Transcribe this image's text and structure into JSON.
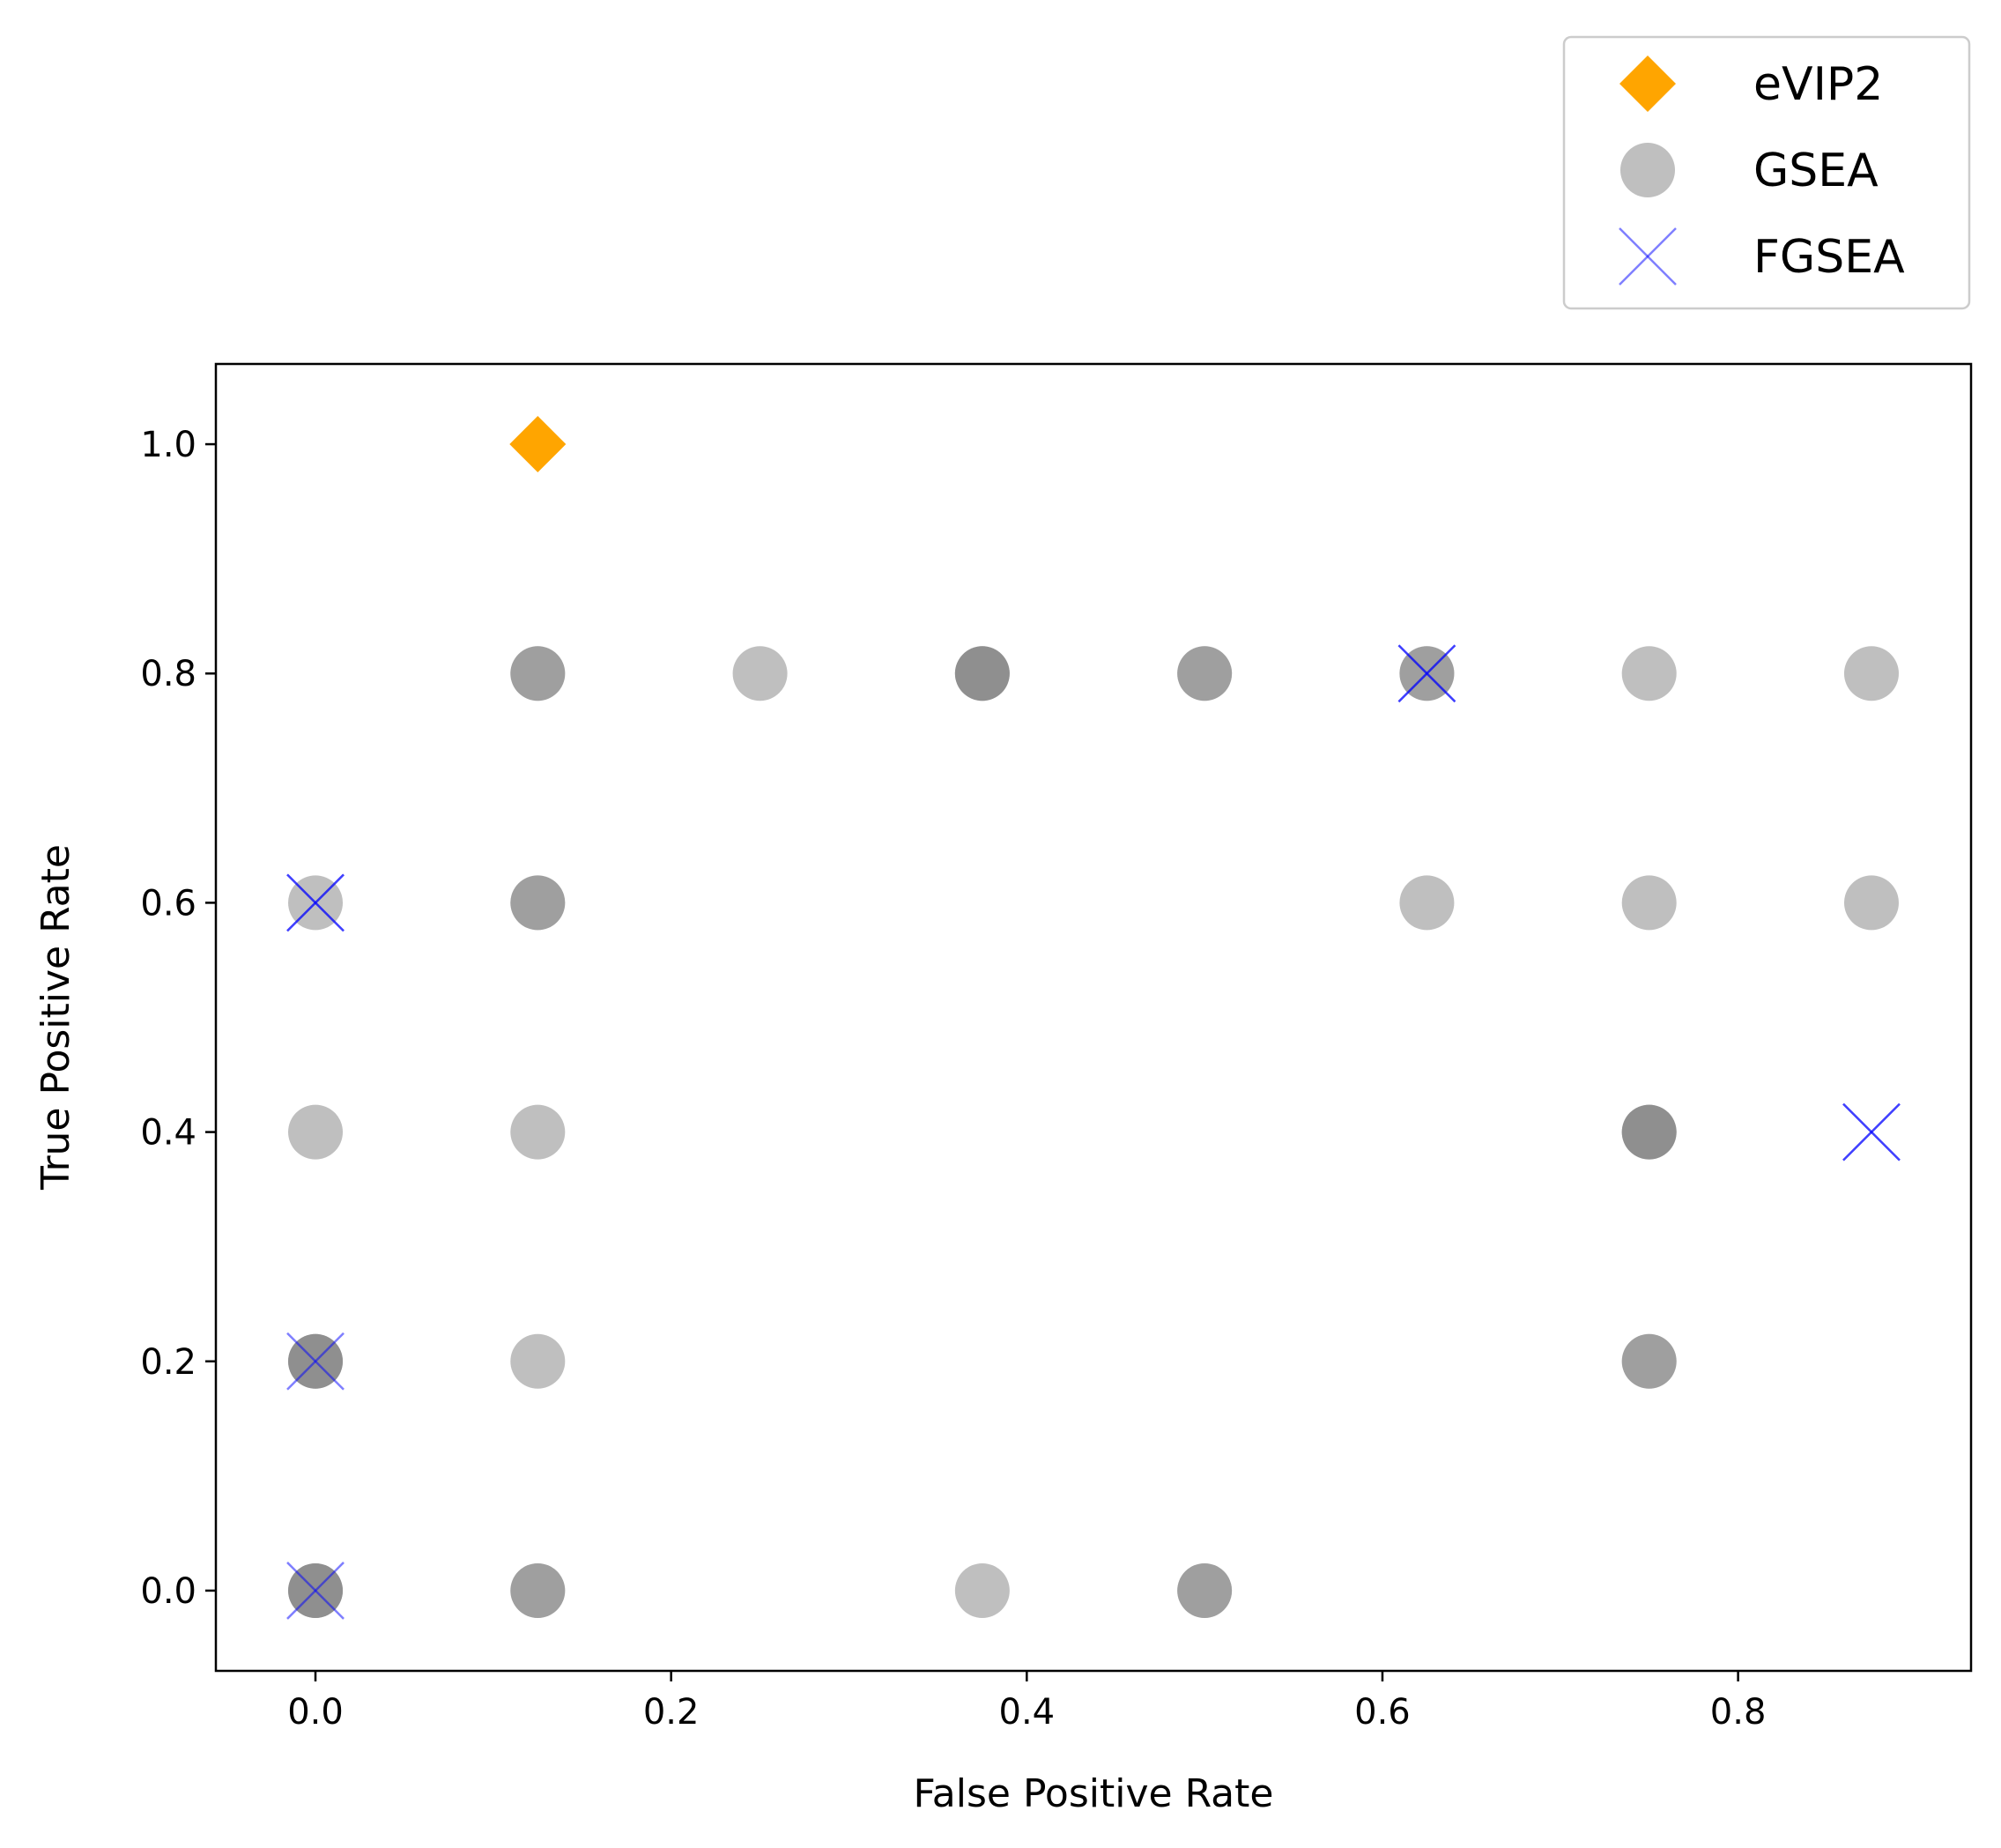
{
  "chart_data": {
    "type": "scatter",
    "title": "",
    "xlabel": "False Positive Rate",
    "ylabel": "True Positive Rate",
    "xlim": [
      -0.056,
      0.931
    ],
    "ylim": [
      -0.07,
      1.07
    ],
    "xticks": [
      "0.0",
      "0.2",
      "0.4",
      "0.6",
      "0.8"
    ],
    "yticks": [
      "0.0",
      "0.2",
      "0.4",
      "0.6",
      "0.8",
      "1.0"
    ],
    "grid": false,
    "legend_position": "above-right",
    "series": [
      {
        "name": "eVIP2",
        "marker": "diamond",
        "color": "#FFA500",
        "points": [
          {
            "x": 0.125,
            "y": 1.0
          }
        ]
      },
      {
        "name": "GSEA",
        "marker": "circle",
        "color": "#808080",
        "points": [
          {
            "x": 0.0,
            "y": 0.0
          },
          {
            "x": 0.0,
            "y": 0.0
          },
          {
            "x": 0.0,
            "y": 0.0
          },
          {
            "x": 0.0,
            "y": 0.2
          },
          {
            "x": 0.0,
            "y": 0.2
          },
          {
            "x": 0.0,
            "y": 0.2
          },
          {
            "x": 0.0,
            "y": 0.4
          },
          {
            "x": 0.0,
            "y": 0.6
          },
          {
            "x": 0.125,
            "y": 0.0
          },
          {
            "x": 0.125,
            "y": 0.0
          },
          {
            "x": 0.125,
            "y": 0.2
          },
          {
            "x": 0.125,
            "y": 0.4
          },
          {
            "x": 0.125,
            "y": 0.6
          },
          {
            "x": 0.125,
            "y": 0.6
          },
          {
            "x": 0.125,
            "y": 0.8
          },
          {
            "x": 0.125,
            "y": 0.8
          },
          {
            "x": 0.25,
            "y": 0.8
          },
          {
            "x": 0.375,
            "y": 0.0
          },
          {
            "x": 0.375,
            "y": 0.8
          },
          {
            "x": 0.375,
            "y": 0.8
          },
          {
            "x": 0.375,
            "y": 0.8
          },
          {
            "x": 0.5,
            "y": 0.0
          },
          {
            "x": 0.5,
            "y": 0.0
          },
          {
            "x": 0.5,
            "y": 0.8
          },
          {
            "x": 0.5,
            "y": 0.8
          },
          {
            "x": 0.625,
            "y": 0.6
          },
          {
            "x": 0.625,
            "y": 0.8
          },
          {
            "x": 0.625,
            "y": 0.8
          },
          {
            "x": 0.75,
            "y": 0.2
          },
          {
            "x": 0.75,
            "y": 0.2
          },
          {
            "x": 0.75,
            "y": 0.4
          },
          {
            "x": 0.75,
            "y": 0.4
          },
          {
            "x": 0.75,
            "y": 0.4
          },
          {
            "x": 0.75,
            "y": 0.6
          },
          {
            "x": 0.75,
            "y": 0.8
          },
          {
            "x": 0.875,
            "y": 0.6
          },
          {
            "x": 0.875,
            "y": 0.8
          }
        ]
      },
      {
        "name": "FGSEA",
        "marker": "x",
        "color": "#0000FF",
        "points": [
          {
            "x": 0.0,
            "y": 0.0
          },
          {
            "x": 0.0,
            "y": 0.2
          },
          {
            "x": 0.0,
            "y": 0.6
          },
          {
            "x": 0.0,
            "y": 0.6
          },
          {
            "x": 0.625,
            "y": 0.8
          },
          {
            "x": 0.625,
            "y": 0.8
          },
          {
            "x": 0.875,
            "y": 0.4
          },
          {
            "x": 0.875,
            "y": 0.4
          }
        ]
      }
    ]
  }
}
